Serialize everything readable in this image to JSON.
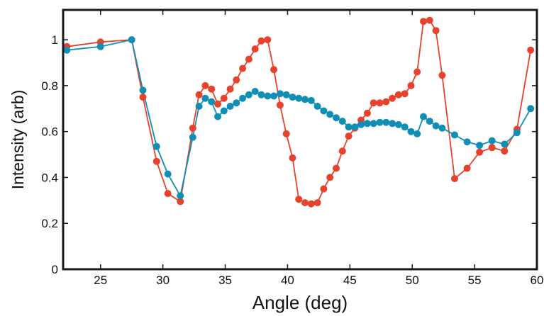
{
  "chart_data": {
    "type": "line",
    "xlabel": "Angle (deg)",
    "ylabel": "Intensity (arb)",
    "xlim": [
      22,
      60
    ],
    "ylim": [
      0,
      1.13
    ],
    "xticks": [
      25,
      30,
      35,
      40,
      45,
      50,
      55,
      60
    ],
    "xtick_labels": [
      "25",
      "30",
      "35",
      "40",
      "45",
      "50",
      "55",
      "60"
    ],
    "yticks": [
      0,
      0.2,
      0.4,
      0.6,
      0.8,
      1
    ],
    "ytick_labels": [
      "0",
      "0.2",
      "0.4",
      "0.6",
      "0.8",
      "1"
    ],
    "grid": false,
    "series": [
      {
        "color": "#e8412c",
        "points": [
          [
            22.3,
            0.97
          ],
          [
            25.0,
            0.99
          ],
          [
            27.5,
            1.0
          ],
          [
            28.4,
            0.75
          ],
          [
            29.5,
            0.47
          ],
          [
            30.4,
            0.33
          ],
          [
            31.4,
            0.295
          ],
          [
            32.4,
            0.615
          ],
          [
            32.9,
            0.76
          ],
          [
            33.4,
            0.8
          ],
          [
            33.9,
            0.785
          ],
          [
            34.4,
            0.72
          ],
          [
            34.9,
            0.745
          ],
          [
            35.4,
            0.785
          ],
          [
            35.9,
            0.825
          ],
          [
            36.4,
            0.875
          ],
          [
            36.9,
            0.915
          ],
          [
            37.4,
            0.96
          ],
          [
            37.9,
            0.995
          ],
          [
            38.4,
            1.0
          ],
          [
            38.9,
            0.87
          ],
          [
            39.4,
            0.715
          ],
          [
            39.9,
            0.59
          ],
          [
            40.4,
            0.485
          ],
          [
            40.9,
            0.305
          ],
          [
            41.4,
            0.29
          ],
          [
            41.9,
            0.285
          ],
          [
            42.4,
            0.29
          ],
          [
            42.9,
            0.35
          ],
          [
            43.4,
            0.4
          ],
          [
            43.9,
            0.44
          ],
          [
            44.4,
            0.515
          ],
          [
            44.9,
            0.58
          ],
          [
            45.4,
            0.615
          ],
          [
            45.9,
            0.65
          ],
          [
            46.4,
            0.68
          ],
          [
            46.9,
            0.725
          ],
          [
            47.4,
            0.725
          ],
          [
            47.9,
            0.73
          ],
          [
            48.4,
            0.745
          ],
          [
            48.9,
            0.76
          ],
          [
            49.4,
            0.765
          ],
          [
            49.9,
            0.8
          ],
          [
            50.4,
            0.86
          ],
          [
            50.9,
            1.08
          ],
          [
            51.4,
            1.085
          ],
          [
            51.9,
            1.04
          ],
          [
            52.4,
            0.845
          ],
          [
            53.4,
            0.395
          ],
          [
            54.4,
            0.44
          ],
          [
            55.4,
            0.51
          ],
          [
            56.4,
            0.53
          ],
          [
            57.4,
            0.515
          ],
          [
            58.4,
            0.61
          ],
          [
            59.5,
            0.955
          ]
        ]
      },
      {
        "color": "#0f8fb5",
        "points": [
          [
            22.3,
            0.955
          ],
          [
            25.0,
            0.97
          ],
          [
            27.5,
            1.0
          ],
          [
            28.4,
            0.78
          ],
          [
            29.5,
            0.535
          ],
          [
            30.4,
            0.415
          ],
          [
            31.4,
            0.32
          ],
          [
            32.4,
            0.575
          ],
          [
            32.9,
            0.71
          ],
          [
            33.4,
            0.745
          ],
          [
            33.9,
            0.73
          ],
          [
            34.4,
            0.665
          ],
          [
            34.9,
            0.69
          ],
          [
            35.4,
            0.71
          ],
          [
            35.9,
            0.725
          ],
          [
            36.4,
            0.745
          ],
          [
            36.9,
            0.76
          ],
          [
            37.4,
            0.775
          ],
          [
            37.9,
            0.76
          ],
          [
            38.4,
            0.755
          ],
          [
            38.9,
            0.755
          ],
          [
            39.4,
            0.765
          ],
          [
            39.9,
            0.76
          ],
          [
            40.4,
            0.75
          ],
          [
            40.9,
            0.745
          ],
          [
            41.4,
            0.74
          ],
          [
            41.9,
            0.735
          ],
          [
            42.4,
            0.71
          ],
          [
            42.9,
            0.69
          ],
          [
            43.4,
            0.675
          ],
          [
            43.9,
            0.66
          ],
          [
            44.4,
            0.645
          ],
          [
            44.9,
            0.62
          ],
          [
            45.4,
            0.62
          ],
          [
            45.9,
            0.63
          ],
          [
            46.4,
            0.635
          ],
          [
            46.9,
            0.635
          ],
          [
            47.4,
            0.64
          ],
          [
            47.9,
            0.64
          ],
          [
            48.4,
            0.635
          ],
          [
            48.9,
            0.63
          ],
          [
            49.4,
            0.62
          ],
          [
            49.9,
            0.6
          ],
          [
            50.4,
            0.59
          ],
          [
            50.9,
            0.665
          ],
          [
            51.4,
            0.645
          ],
          [
            51.9,
            0.625
          ],
          [
            52.4,
            0.615
          ],
          [
            53.4,
            0.585
          ],
          [
            54.4,
            0.555
          ],
          [
            55.4,
            0.54
          ],
          [
            56.4,
            0.56
          ],
          [
            57.4,
            0.545
          ],
          [
            58.4,
            0.595
          ],
          [
            59.5,
            0.7
          ]
        ]
      }
    ]
  }
}
